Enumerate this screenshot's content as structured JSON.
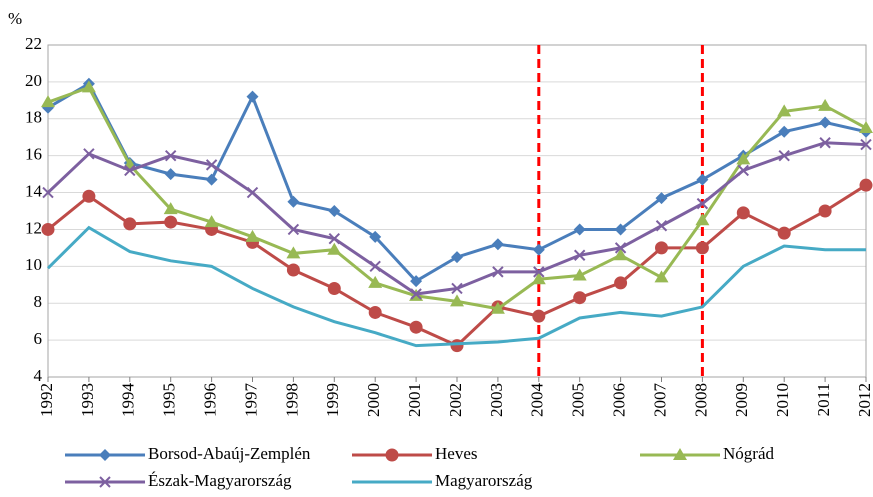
{
  "chart_data": {
    "type": "line",
    "y_label": "%",
    "x": [
      1992,
      1993,
      1994,
      1995,
      1996,
      1997,
      1998,
      1999,
      2000,
      2001,
      2002,
      2003,
      2004,
      2005,
      2006,
      2007,
      2008,
      2009,
      2010,
      2011,
      2012
    ],
    "xticks": [
      1992,
      1993,
      1994,
      1995,
      1996,
      1997,
      1998,
      1999,
      2000,
      2001,
      2002,
      2003,
      2004,
      2005,
      2006,
      2007,
      2008,
      2009,
      2010,
      2011,
      2012
    ],
    "xlim": [
      1992,
      2012
    ],
    "ylim": [
      4,
      22
    ],
    "yticks": [
      4,
      6,
      8,
      10,
      12,
      14,
      16,
      18,
      20,
      22
    ],
    "grid": true,
    "vlines": [
      2004,
      2008
    ],
    "vline_color": "#ff0000",
    "series": [
      {
        "name": "Borsod-Abaúj-Zemplén",
        "color": "#4a7ebb",
        "marker": "diamond",
        "values": [
          18.6,
          19.9,
          15.6,
          15.0,
          14.7,
          19.2,
          13.5,
          13.0,
          11.6,
          9.2,
          10.5,
          11.2,
          10.9,
          12.0,
          12.0,
          13.7,
          14.7,
          16.0,
          17.3,
          17.8,
          17.3
        ]
      },
      {
        "name": "Heves",
        "color": "#be4b48",
        "marker": "circle",
        "values": [
          12.0,
          13.8,
          12.3,
          12.4,
          12.0,
          11.3,
          9.8,
          8.8,
          7.5,
          6.7,
          5.7,
          7.8,
          7.3,
          8.3,
          9.1,
          11.0,
          11.0,
          12.9,
          11.8,
          13.0,
          14.4
        ]
      },
      {
        "name": "Nógrád",
        "color": "#98b954",
        "marker": "triangle",
        "values": [
          18.9,
          19.7,
          15.5,
          13.1,
          12.4,
          11.6,
          10.7,
          10.9,
          9.1,
          8.4,
          8.1,
          7.7,
          9.3,
          9.5,
          10.6,
          9.4,
          12.5,
          15.8,
          18.4,
          18.7,
          17.5
        ]
      },
      {
        "name": "Észak-Magyarország",
        "color": "#7d60a0",
        "marker": "x",
        "values": [
          14.0,
          16.1,
          15.2,
          16.0,
          15.5,
          14.0,
          12.0,
          11.5,
          10.0,
          8.5,
          8.8,
          9.7,
          9.7,
          10.6,
          11.0,
          12.2,
          13.4,
          15.2,
          16.0,
          16.7,
          16.6
        ]
      },
      {
        "name": "Magyarország",
        "color": "#46aac5",
        "marker": "none",
        "values": [
          9.9,
          12.1,
          10.8,
          10.3,
          10.0,
          8.8,
          7.8,
          7.0,
          6.4,
          5.7,
          5.8,
          5.9,
          6.1,
          7.2,
          7.5,
          7.3,
          7.8,
          10.0,
          11.1,
          10.9,
          10.9
        ]
      }
    ]
  }
}
